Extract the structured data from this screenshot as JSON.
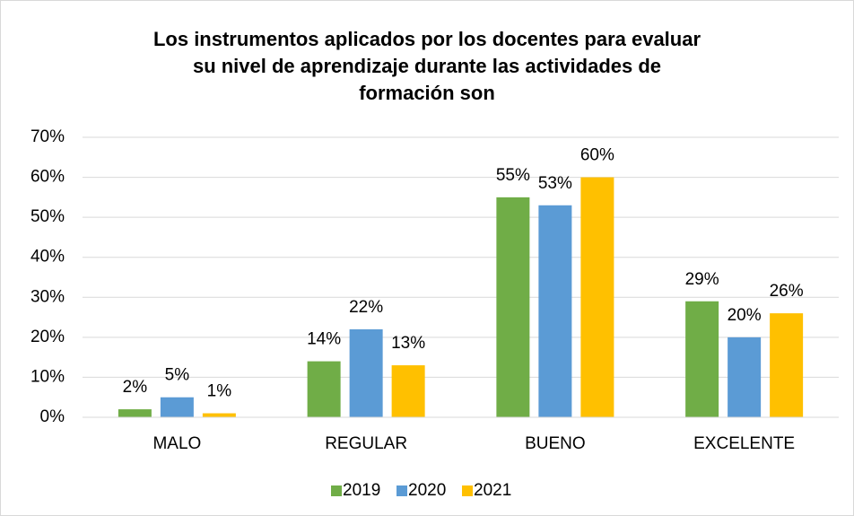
{
  "chart_data": {
    "type": "bar",
    "title": [
      "Los instrumentos aplicados por los docentes para evaluar",
      "su nivel de aprendizaje durante las actividades de",
      "formación son"
    ],
    "categories": [
      "MALO",
      "REGULAR",
      "BUENO",
      "EXCELENTE"
    ],
    "series": [
      {
        "name": "2019",
        "color": "#70ad47",
        "values": [
          2,
          14,
          55,
          29
        ],
        "value_labels": [
          "2%",
          "14%",
          "55%",
          "29%"
        ]
      },
      {
        "name": "2020",
        "color": "#5b9bd5",
        "values": [
          5,
          22,
          53,
          20
        ],
        "value_labels": [
          "5%",
          "22%",
          "53%",
          "20%"
        ]
      },
      {
        "name": "2021",
        "color": "#ffc000",
        "values": [
          1,
          13,
          60,
          26
        ],
        "value_labels": [
          "1%",
          "13%",
          "60%",
          "26%"
        ]
      }
    ],
    "ylim": [
      0,
      70
    ],
    "yticks": [
      {
        "value": 0,
        "label": "0%"
      },
      {
        "value": 10,
        "label": "10%"
      },
      {
        "value": 20,
        "label": "20%"
      },
      {
        "value": 30,
        "label": "30%"
      },
      {
        "value": 40,
        "label": "40%"
      },
      {
        "value": 50,
        "label": "50%"
      },
      {
        "value": 60,
        "label": "60%"
      },
      {
        "value": 70,
        "label": "70%"
      }
    ],
    "grid": true,
    "legend": "bottom"
  }
}
